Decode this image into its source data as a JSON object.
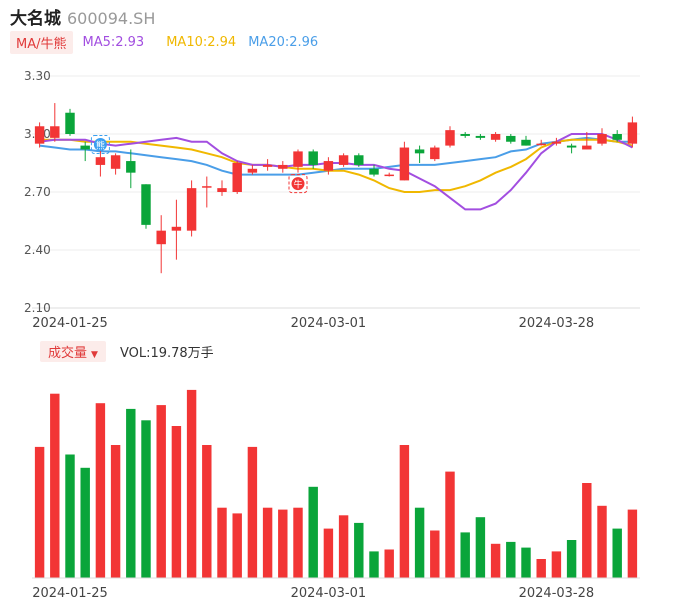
{
  "header": {
    "name": "大名城",
    "code": "600094.SH"
  },
  "ma_legend": {
    "tab": "MA/牛熊",
    "items": [
      {
        "text": "MA5:2.93",
        "color": "#a24ee0"
      },
      {
        "text": "MA10:2.94",
        "color": "#f0b800"
      },
      {
        "text": "MA20:2.96",
        "color": "#4a9ee8"
      }
    ]
  },
  "volume_legend": {
    "tab": "成交量",
    "value": "VOL:19.78万手"
  },
  "colors": {
    "up": "#f23535",
    "down": "#0aa53a",
    "ma5": "#a24ee0",
    "ma10": "#f0b800",
    "ma20": "#4a9ee8"
  },
  "chart_data": [
    {
      "type": "candlestick",
      "y_ticks": [
        "3.30",
        "3.00",
        "2.70",
        "2.40",
        "2.10"
      ],
      "ylim": [
        2.1,
        3.3
      ],
      "x_ticks": [
        {
          "label": "2024-01-25",
          "index": 2
        },
        {
          "label": "2024-03-01",
          "index": 19
        },
        {
          "label": "2024-03-28",
          "index": 34
        }
      ],
      "markers": [
        {
          "index": 4,
          "text": "熊",
          "color": "#3aa0f0"
        },
        {
          "index": 17,
          "text": "牛",
          "color": "#f23535"
        }
      ],
      "candles": [
        {
          "o": 2.95,
          "c": 3.04,
          "h": 3.06,
          "l": 2.93
        },
        {
          "o": 2.98,
          "c": 3.04,
          "h": 3.16,
          "l": 2.96
        },
        {
          "o": 3.11,
          "c": 3.0,
          "h": 3.13,
          "l": 2.99
        },
        {
          "o": 2.94,
          "c": 2.92,
          "h": 2.96,
          "l": 2.86
        },
        {
          "o": 2.84,
          "c": 2.88,
          "h": 2.93,
          "l": 2.78
        },
        {
          "o": 2.82,
          "c": 2.89,
          "h": 2.9,
          "l": 2.79
        },
        {
          "o": 2.86,
          "c": 2.8,
          "h": 2.92,
          "l": 2.72
        },
        {
          "o": 2.74,
          "c": 2.53,
          "h": 2.74,
          "l": 2.51
        },
        {
          "o": 2.43,
          "c": 2.5,
          "h": 2.58,
          "l": 2.28
        },
        {
          "o": 2.5,
          "c": 2.52,
          "h": 2.66,
          "l": 2.35
        },
        {
          "o": 2.5,
          "c": 2.72,
          "h": 2.76,
          "l": 2.47
        },
        {
          "o": 2.73,
          "c": 2.73,
          "h": 2.78,
          "l": 2.62
        },
        {
          "o": 2.7,
          "c": 2.72,
          "h": 2.76,
          "l": 2.68
        },
        {
          "o": 2.7,
          "c": 2.85,
          "h": 2.86,
          "l": 2.69
        },
        {
          "o": 2.8,
          "c": 2.82,
          "h": 2.84,
          "l": 2.79
        },
        {
          "o": 2.83,
          "c": 2.84,
          "h": 2.87,
          "l": 2.81
        },
        {
          "o": 2.82,
          "c": 2.84,
          "h": 2.86,
          "l": 2.8
        },
        {
          "o": 2.83,
          "c": 2.91,
          "h": 2.92,
          "l": 2.8
        },
        {
          "o": 2.91,
          "c": 2.84,
          "h": 2.92,
          "l": 2.82
        },
        {
          "o": 2.81,
          "c": 2.86,
          "h": 2.88,
          "l": 2.79
        },
        {
          "o": 2.84,
          "c": 2.89,
          "h": 2.9,
          "l": 2.83
        },
        {
          "o": 2.89,
          "c": 2.84,
          "h": 2.9,
          "l": 2.83
        },
        {
          "o": 2.82,
          "c": 2.79,
          "h": 2.84,
          "l": 2.78
        },
        {
          "o": 2.79,
          "c": 2.79,
          "h": 2.8,
          "l": 2.78
        },
        {
          "o": 2.76,
          "c": 2.93,
          "h": 2.96,
          "l": 2.76
        },
        {
          "o": 2.92,
          "c": 2.9,
          "h": 2.94,
          "l": 2.85
        },
        {
          "o": 2.87,
          "c": 2.93,
          "h": 2.94,
          "l": 2.86
        },
        {
          "o": 2.94,
          "c": 3.02,
          "h": 3.04,
          "l": 2.93
        },
        {
          "o": 3.0,
          "c": 2.99,
          "h": 3.01,
          "l": 2.98
        },
        {
          "o": 2.99,
          "c": 2.98,
          "h": 3.0,
          "l": 2.97
        },
        {
          "o": 2.97,
          "c": 3.0,
          "h": 3.01,
          "l": 2.96
        },
        {
          "o": 2.99,
          "c": 2.96,
          "h": 3.0,
          "l": 2.95
        },
        {
          "o": 2.97,
          "c": 2.94,
          "h": 2.99,
          "l": 2.94
        },
        {
          "o": 2.95,
          "c": 2.95,
          "h": 2.97,
          "l": 2.94
        },
        {
          "o": 2.95,
          "c": 2.96,
          "h": 2.98,
          "l": 2.94
        },
        {
          "o": 2.94,
          "c": 2.93,
          "h": 2.95,
          "l": 2.9
        },
        {
          "o": 2.92,
          "c": 2.94,
          "h": 3.01,
          "l": 2.92
        },
        {
          "o": 2.95,
          "c": 3.0,
          "h": 3.03,
          "l": 2.94
        },
        {
          "o": 3.0,
          "c": 2.97,
          "h": 3.02,
          "l": 2.96
        },
        {
          "o": 2.95,
          "c": 3.06,
          "h": 3.09,
          "l": 2.93
        }
      ],
      "ma5": [
        2.96,
        2.97,
        2.97,
        2.97,
        2.95,
        2.94,
        2.95,
        2.96,
        2.97,
        2.98,
        2.96,
        2.96,
        2.9,
        2.86,
        2.84,
        2.84,
        2.83,
        2.84,
        2.84,
        2.85,
        2.85,
        2.84,
        2.84,
        2.82,
        2.81,
        2.77,
        2.73,
        2.67,
        2.61,
        2.61,
        2.64,
        2.71,
        2.8,
        2.9,
        2.96,
        3.0,
        3.0,
        3.0,
        2.97,
        2.93
      ],
      "ma10": [
        2.97,
        2.97,
        2.97,
        2.96,
        2.96,
        2.96,
        2.96,
        2.95,
        2.94,
        2.93,
        2.92,
        2.9,
        2.88,
        2.85,
        2.84,
        2.84,
        2.83,
        2.82,
        2.82,
        2.81,
        2.81,
        2.79,
        2.76,
        2.72,
        2.7,
        2.7,
        2.71,
        2.71,
        2.73,
        2.76,
        2.8,
        2.83,
        2.87,
        2.93,
        2.96,
        2.97,
        2.97,
        2.97,
        2.96,
        2.94
      ],
      "ma20": [
        2.94,
        2.93,
        2.92,
        2.92,
        2.91,
        2.91,
        2.9,
        2.89,
        2.88,
        2.87,
        2.86,
        2.84,
        2.81,
        2.79,
        2.79,
        2.79,
        2.79,
        2.79,
        2.8,
        2.81,
        2.82,
        2.82,
        2.82,
        2.83,
        2.84,
        2.84,
        2.84,
        2.85,
        2.86,
        2.87,
        2.88,
        2.91,
        2.92,
        2.95,
        2.96,
        2.97,
        2.98,
        2.97,
        2.96,
        2.96
      ]
    },
    {
      "type": "bar",
      "series_name": "成交量",
      "x_ticks": [
        {
          "label": "2024-01-25",
          "index": 2
        },
        {
          "label": "2024-03-01",
          "index": 19
        },
        {
          "label": "2024-03-28",
          "index": 34
        }
      ],
      "ylim": [
        0,
        100
      ],
      "values": [
        69,
        97,
        65,
        58,
        92,
        70,
        89,
        83,
        91,
        80,
        99,
        70,
        37,
        34,
        69,
        37,
        36,
        37,
        48,
        26,
        33,
        29,
        14,
        15,
        70,
        37,
        25,
        56,
        24,
        32,
        18,
        19,
        16,
        10,
        14,
        20,
        50,
        38,
        26,
        36
      ]
    }
  ]
}
